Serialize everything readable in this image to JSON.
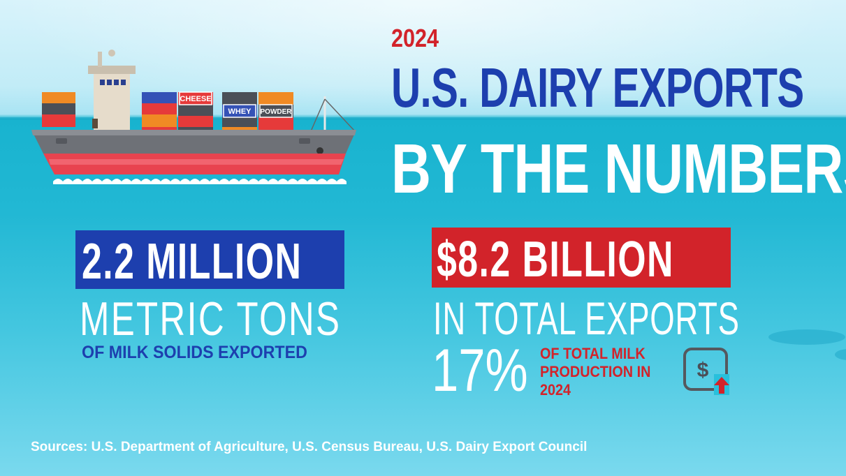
{
  "header": {
    "year": "2024",
    "title_line1": "U.S. DAIRY EXPORTS",
    "title_line2": "BY THE NUMBERS"
  },
  "ship": {
    "containers": {
      "cheese": "CHEESE",
      "whey": "WHEY",
      "powder": "POWDER"
    }
  },
  "stats": {
    "volume": {
      "value": "2.2 MILLION",
      "unit": "METRIC TONS",
      "caption": "OF MILK SOLIDS EXPORTED"
    },
    "value": {
      "amount": "$8.2 BILLION",
      "caption": "IN TOTAL EXPORTS"
    },
    "share": {
      "percent": "17%",
      "line1": "OF TOTAL MILK",
      "line2": "PRODUCTION IN",
      "line3": "2024"
    }
  },
  "icons": {
    "growth": "dollar-growth-icon",
    "ship": "cargo-ship-icon"
  },
  "colors": {
    "blue": "#1d3fae",
    "red": "#d2232a",
    "water": "#22b8d4",
    "white": "#ffffff"
  },
  "footer": {
    "sources": "Sources: U.S. Department of Agriculture, U.S. Census Bureau, U.S. Dairy Export Council"
  }
}
